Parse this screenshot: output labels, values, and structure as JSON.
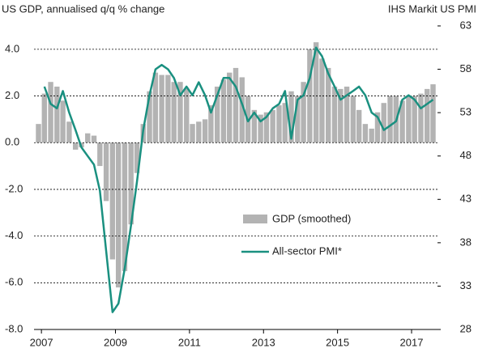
{
  "chart_data": {
    "type": "bar-line",
    "title": "US GDP, annualised q/q % change",
    "y2_title": "IHS Markit US PMI",
    "xlim": [
      2006.8,
      2017.7
    ],
    "xticks": [
      2007,
      2009,
      2011,
      2013,
      2015,
      2017
    ],
    "ylim": [
      -8,
      5
    ],
    "yticks": [
      {
        "value": -8,
        "label": "-8.0"
      },
      {
        "value": -6,
        "label": "-6.0"
      },
      {
        "value": -4,
        "label": "-4.0"
      },
      {
        "value": -2,
        "label": "-2.0"
      },
      {
        "value": 0,
        "label": "0.0"
      },
      {
        "value": 2,
        "label": "2.0"
      },
      {
        "value": 4,
        "label": "4.0"
      }
    ],
    "y2lim": [
      28,
      63
    ],
    "y2ticks": [
      28,
      33,
      38,
      43,
      48,
      53,
      58,
      63
    ],
    "grid": true,
    "x": [
      2006.92,
      2007.08,
      2007.25,
      2007.42,
      2007.58,
      2007.75,
      2007.92,
      2008.08,
      2008.25,
      2008.42,
      2008.58,
      2008.75,
      2008.92,
      2009.08,
      2009.25,
      2009.42,
      2009.58,
      2009.75,
      2009.92,
      2010.08,
      2010.25,
      2010.42,
      2010.58,
      2010.75,
      2010.92,
      2011.08,
      2011.25,
      2011.42,
      2011.58,
      2011.75,
      2011.92,
      2012.08,
      2012.25,
      2012.42,
      2012.58,
      2012.75,
      2012.92,
      2013.08,
      2013.25,
      2013.42,
      2013.58,
      2013.75,
      2013.92,
      2014.08,
      2014.25,
      2014.42,
      2014.58,
      2014.75,
      2014.92,
      2015.08,
      2015.25,
      2015.42,
      2015.58,
      2015.75,
      2015.92,
      2016.08,
      2016.25,
      2016.42,
      2016.58,
      2016.75,
      2016.92,
      2017.08,
      2017.25,
      2017.42,
      2017.58
    ],
    "series": [
      {
        "name": "GDP (smoothed)",
        "type": "bar",
        "color": "#b3b3b3",
        "values": [
          0.8,
          2.1,
          2.6,
          2.4,
          1.8,
          0.9,
          -0.3,
          -0.2,
          0.4,
          0.3,
          -1.0,
          -2.5,
          -5.0,
          -6.2,
          -5.5,
          -3.5,
          -1.3,
          0.8,
          2.2,
          3.0,
          2.9,
          2.9,
          2.6,
          2.6,
          2.3,
          0.8,
          0.9,
          1.0,
          1.6,
          2.4,
          2.7,
          3.0,
          3.2,
          2.8,
          2.0,
          1.4,
          1.2,
          1.3,
          1.4,
          1.6,
          1.7,
          2.2,
          2.0,
          2.6,
          4.0,
          4.3,
          3.6,
          3.2,
          2.4,
          2.3,
          2.4,
          2.0,
          1.4,
          0.8,
          0.6,
          1.3,
          1.7,
          2.0,
          2.0,
          1.8,
          2.0,
          2.0,
          2.1,
          2.3,
          2.5
        ]
      },
      {
        "name": "All-sector PMI*",
        "type": "line",
        "axis": "y2",
        "color": "#1a9080",
        "values": [
          null,
          56,
          54,
          53.5,
          55.5,
          53,
          51,
          49,
          48,
          47,
          44,
          37,
          30,
          31,
          35,
          40,
          45,
          51,
          55,
          58,
          58.5,
          58,
          57,
          55,
          56,
          55,
          56.5,
          55,
          53,
          55,
          57,
          57,
          56,
          54,
          52,
          53,
          52,
          52.5,
          53.5,
          54,
          55.5,
          50,
          54.5,
          55,
          57,
          60.5,
          59.5,
          57.5,
          56,
          54.5,
          55,
          55.5,
          56,
          55,
          53,
          52.5,
          51,
          51.5,
          52,
          54.5,
          55,
          54.5,
          53.5,
          54,
          54.5
        ]
      }
    ]
  }
}
